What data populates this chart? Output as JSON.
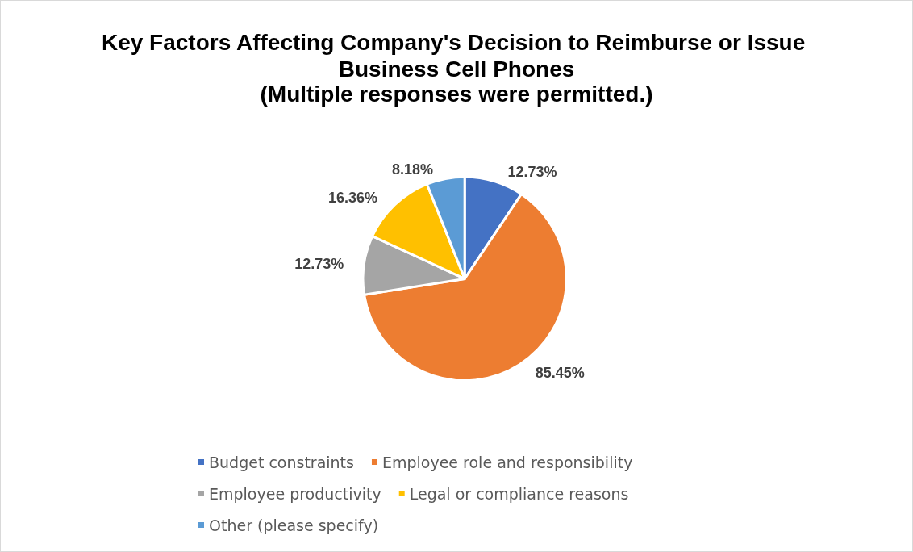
{
  "chart_data": {
    "type": "pie",
    "title": "Key Factors Affecting Company's Decision to Reimburse or Issue Business Cell Phones",
    "subtitle": "(Multiple responses were permitted.)",
    "categories": [
      "Budget constraints",
      "Employee role and responsibility",
      "Employee productivity",
      "Legal or compliance reasons",
      "Other (please specify)"
    ],
    "values": [
      12.73,
      85.45,
      12.73,
      16.36,
      8.18
    ],
    "value_labels": [
      "12.73%",
      "85.45%",
      "12.73%",
      "16.36%",
      "8.18%"
    ],
    "colors": [
      "#4472c4",
      "#ed7d31",
      "#a5a5a5",
      "#ffc000",
      "#5b9bd5"
    ],
    "legend": "bottom"
  }
}
